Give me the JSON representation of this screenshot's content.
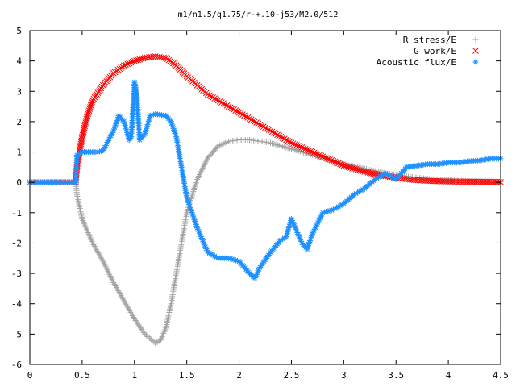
{
  "chart_data": {
    "type": "scatter",
    "title": "m1/n1.5/q1.75/r-+.10-j53/M2.0/512",
    "xlabel": "",
    "ylabel": "",
    "xlim": [
      0,
      4.5
    ],
    "ylim": [
      -6,
      5
    ],
    "x_ticks": [
      "0",
      "0.5",
      "1",
      "1.5",
      "2",
      "2.5",
      "3",
      "3.5",
      "4",
      "4.5"
    ],
    "y_ticks": [
      "5",
      "4",
      "3",
      "2",
      "1",
      "0",
      "-1",
      "-2",
      "-3",
      "-4",
      "-5",
      "-6"
    ],
    "grid": false,
    "legend_position": "top-right",
    "series": [
      {
        "name": "R stress/E",
        "marker": "+",
        "color": "#a0a0a0",
        "points": [
          [
            0.0,
            0
          ],
          [
            0.1,
            0
          ],
          [
            0.2,
            0
          ],
          [
            0.3,
            0
          ],
          [
            0.4,
            0
          ],
          [
            0.44,
            0
          ],
          [
            0.45,
            -0.4
          ],
          [
            0.5,
            -1.2
          ],
          [
            0.6,
            -2.0
          ],
          [
            0.7,
            -2.6
          ],
          [
            0.8,
            -3.3
          ],
          [
            0.9,
            -3.9
          ],
          [
            1.0,
            -4.5
          ],
          [
            1.1,
            -5.0
          ],
          [
            1.2,
            -5.3
          ],
          [
            1.25,
            -5.2
          ],
          [
            1.3,
            -4.8
          ],
          [
            1.35,
            -4.0
          ],
          [
            1.4,
            -3.0
          ],
          [
            1.45,
            -2.0
          ],
          [
            1.5,
            -1.0
          ],
          [
            1.6,
            0.1
          ],
          [
            1.7,
            0.8
          ],
          [
            1.8,
            1.2
          ],
          [
            1.9,
            1.35
          ],
          [
            2.0,
            1.4
          ],
          [
            2.1,
            1.4
          ],
          [
            2.2,
            1.35
          ],
          [
            2.3,
            1.3
          ],
          [
            2.4,
            1.2
          ],
          [
            2.5,
            1.1
          ],
          [
            2.6,
            1.0
          ],
          [
            2.7,
            0.9
          ],
          [
            2.8,
            0.8
          ],
          [
            2.9,
            0.7
          ],
          [
            3.0,
            0.6
          ],
          [
            3.2,
            0.45
          ],
          [
            3.4,
            0.3
          ],
          [
            3.5,
            0.25
          ],
          [
            3.6,
            0.2
          ],
          [
            3.8,
            0.12
          ],
          [
            4.0,
            0.07
          ],
          [
            4.2,
            0.04
          ],
          [
            4.5,
            0.02
          ]
        ]
      },
      {
        "name": "G work/E",
        "marker": "x",
        "color": "#ff0000",
        "points": [
          [
            0.0,
            0
          ],
          [
            0.1,
            0
          ],
          [
            0.2,
            0
          ],
          [
            0.3,
            0
          ],
          [
            0.4,
            0
          ],
          [
            0.44,
            0
          ],
          [
            0.45,
            0.5
          ],
          [
            0.5,
            1.5
          ],
          [
            0.55,
            2.2
          ],
          [
            0.6,
            2.7
          ],
          [
            0.7,
            3.2
          ],
          [
            0.8,
            3.6
          ],
          [
            0.9,
            3.85
          ],
          [
            1.0,
            4.0
          ],
          [
            1.1,
            4.1
          ],
          [
            1.2,
            4.15
          ],
          [
            1.3,
            4.1
          ],
          [
            1.4,
            3.85
          ],
          [
            1.5,
            3.5
          ],
          [
            1.6,
            3.2
          ],
          [
            1.7,
            2.9
          ],
          [
            1.8,
            2.7
          ],
          [
            1.9,
            2.5
          ],
          [
            2.0,
            2.3
          ],
          [
            2.1,
            2.1
          ],
          [
            2.2,
            1.9
          ],
          [
            2.3,
            1.7
          ],
          [
            2.4,
            1.5
          ],
          [
            2.5,
            1.3
          ],
          [
            2.6,
            1.15
          ],
          [
            2.7,
            1.0
          ],
          [
            2.8,
            0.85
          ],
          [
            2.9,
            0.7
          ],
          [
            3.0,
            0.55
          ],
          [
            3.2,
            0.35
          ],
          [
            3.4,
            0.2
          ],
          [
            3.5,
            0.15
          ],
          [
            3.6,
            0.1
          ],
          [
            3.8,
            0.05
          ],
          [
            4.0,
            0.03
          ],
          [
            4.2,
            0.02
          ],
          [
            4.5,
            0.01
          ]
        ]
      },
      {
        "name": "Acoustic flux/E",
        "marker": "*",
        "color": "#1e90ff",
        "points": [
          [
            0.0,
            0
          ],
          [
            0.1,
            0
          ],
          [
            0.2,
            0
          ],
          [
            0.3,
            0
          ],
          [
            0.4,
            0
          ],
          [
            0.44,
            0
          ],
          [
            0.45,
            0.9
          ],
          [
            0.5,
            1.0
          ],
          [
            0.6,
            1.0
          ],
          [
            0.65,
            1.0
          ],
          [
            0.7,
            1.05
          ],
          [
            0.8,
            1.7
          ],
          [
            0.85,
            2.2
          ],
          [
            0.9,
            2.0
          ],
          [
            0.95,
            1.4
          ],
          [
            0.97,
            1.5
          ],
          [
            1.0,
            3.3
          ],
          [
            1.02,
            3.0
          ],
          [
            1.05,
            1.4
          ],
          [
            1.1,
            1.6
          ],
          [
            1.15,
            2.2
          ],
          [
            1.2,
            2.25
          ],
          [
            1.3,
            2.2
          ],
          [
            1.35,
            2.0
          ],
          [
            1.4,
            1.5
          ],
          [
            1.5,
            -0.5
          ],
          [
            1.6,
            -1.5
          ],
          [
            1.7,
            -2.3
          ],
          [
            1.8,
            -2.5
          ],
          [
            1.9,
            -2.5
          ],
          [
            2.0,
            -2.6
          ],
          [
            2.1,
            -3.0
          ],
          [
            2.15,
            -3.15
          ],
          [
            2.2,
            -2.8
          ],
          [
            2.3,
            -2.3
          ],
          [
            2.4,
            -1.9
          ],
          [
            2.45,
            -1.8
          ],
          [
            2.5,
            -1.2
          ],
          [
            2.55,
            -1.6
          ],
          [
            2.6,
            -2.0
          ],
          [
            2.65,
            -2.2
          ],
          [
            2.7,
            -1.7
          ],
          [
            2.8,
            -1.0
          ],
          [
            2.9,
            -0.9
          ],
          [
            3.0,
            -0.7
          ],
          [
            3.1,
            -0.4
          ],
          [
            3.2,
            -0.2
          ],
          [
            3.3,
            0.1
          ],
          [
            3.4,
            0.3
          ],
          [
            3.45,
            0.2
          ],
          [
            3.5,
            0.1
          ],
          [
            3.55,
            0.3
          ],
          [
            3.6,
            0.5
          ],
          [
            3.7,
            0.55
          ],
          [
            3.8,
            0.6
          ],
          [
            3.9,
            0.6
          ],
          [
            4.0,
            0.65
          ],
          [
            4.1,
            0.65
          ],
          [
            4.2,
            0.7
          ],
          [
            4.3,
            0.72
          ],
          [
            4.4,
            0.78
          ],
          [
            4.5,
            0.78
          ]
        ]
      }
    ]
  }
}
